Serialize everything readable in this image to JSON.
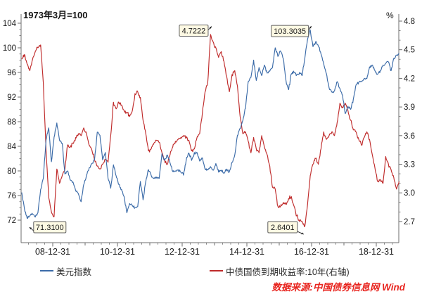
{
  "header": {
    "note": "1973年3月=100",
    "right_axis_unit": "%"
  },
  "source_note": "数据来源:中国债券信息网 Wind",
  "colors": {
    "usd_line": "#3b6ba8",
    "bond_line": "#bf2a2a",
    "axis": "#6e6e6e",
    "tick_text": "#1a1a1a",
    "annotation_bg": "#fdf9e3",
    "annotation_border": "#5f5f5f",
    "source_text": "#e8251f"
  },
  "legend": {
    "items": [
      {
        "label": "美元指数",
        "series": "usd"
      },
      {
        "label": "中债国债到期收益率:10年(右轴)",
        "series": "bond"
      }
    ]
  },
  "chart_data": {
    "type": "line",
    "title": "",
    "x_tick_labels": [
      "08-12-31",
      "10-12-31",
      "12-12-31",
      "14-12-31",
      "16-12-31",
      "18-12-31"
    ],
    "left_axis": {
      "note": "1973年3月=100",
      "ticks": [
        104,
        100,
        96,
        92,
        88,
        84,
        80,
        76,
        72
      ],
      "range": [
        68.3,
        105.5
      ]
    },
    "right_axis": {
      "unit": "%",
      "ticks": [
        4.8,
        4.5,
        4.2,
        3.9,
        3.6,
        3.3,
        3.0,
        2.7
      ],
      "range": [
        2.47,
        4.87
      ]
    },
    "grid": false,
    "legend_position": "bottom",
    "series": [
      {
        "name": "美元指数",
        "axis": "left",
        "start": "2008-01",
        "interval": "monthly",
        "end": "2019-09",
        "min_annotation": "71.3100",
        "max_annotation": "103.3035",
        "values": [
          76.5,
          73.8,
          72.3,
          72.7,
          73.0,
          72.5,
          73.2,
          77.0,
          78.8,
          85.0,
          87.0,
          81.5,
          85.5,
          87.8,
          85.0,
          84.5,
          79.5,
          80.0,
          78.5,
          78.2,
          76.8,
          76.3,
          75.0,
          77.8,
          79.3,
          80.5,
          81.2,
          81.8,
          86.3,
          85.8,
          81.8,
          83.0,
          78.8,
          77.2,
          81.0,
          79.2,
          77.8,
          77.0,
          75.8,
          73.2,
          74.7,
          74.4,
          74.0,
          74.2,
          78.3,
          75.3,
          78.3,
          80.2,
          79.3,
          78.8,
          79.0,
          78.8,
          82.8,
          81.7,
          82.6,
          81.3,
          79.9,
          80.0,
          80.2,
          79.8,
          79.3,
          81.8,
          82.9,
          81.7,
          83.0,
          83.0,
          81.6,
          82.1,
          80.3,
          80.2,
          80.7,
          80.1,
          81.2,
          79.8,
          80.1,
          79.6,
          80.3,
          79.9,
          81.4,
          82.6,
          85.8,
          86.9,
          88.2,
          90.2,
          94.5,
          95.2,
          98.0,
          94.7,
          96.8,
          95.5,
          97.2,
          95.9,
          96.2,
          96.8,
          100.0,
          98.6,
          99.5,
          98.2,
          94.7,
          93.2,
          95.8,
          96.0,
          95.6,
          96.0,
          95.5,
          98.3,
          101.4,
          102.9,
          100.2,
          101.0,
          100.3,
          99.0,
          97.4,
          95.8,
          93.5,
          92.8,
          93.0,
          94.5,
          93.4,
          92.3,
          89.3,
          90.5,
          90.0,
          91.7,
          94.0,
          94.4,
          94.5,
          95.0,
          95.0,
          96.9,
          97.2,
          96.3,
          95.7,
          96.3,
          97.2,
          97.5,
          97.7,
          96.3,
          98.3,
          98.8,
          99.0
        ]
      },
      {
        "name": "中债国债到期收益率:10年(右轴)",
        "axis": "right",
        "start": "2008-01",
        "interval": "monthly",
        "end": "2019-09",
        "min_annotation": "2.6401",
        "max_annotation": "4.7222",
        "values": [
          4.4,
          4.45,
          4.35,
          4.28,
          4.4,
          4.48,
          4.52,
          4.55,
          4.15,
          3.45,
          2.95,
          2.8,
          2.75,
          3.25,
          3.1,
          3.18,
          3.25,
          3.5,
          3.48,
          3.52,
          3.58,
          3.62,
          3.6,
          3.68,
          3.62,
          3.5,
          3.45,
          3.35,
          3.28,
          3.25,
          3.3,
          3.35,
          3.32,
          3.6,
          3.95,
          3.88,
          3.95,
          3.92,
          3.86,
          3.84,
          3.8,
          3.86,
          4.04,
          4.06,
          4.0,
          3.76,
          3.62,
          3.44,
          3.46,
          3.52,
          3.55,
          3.53,
          3.42,
          3.34,
          3.3,
          3.4,
          3.48,
          3.54,
          3.56,
          3.58,
          3.6,
          3.58,
          3.55,
          3.44,
          3.46,
          3.58,
          3.62,
          3.84,
          4.06,
          4.16,
          4.66,
          4.58,
          4.52,
          4.42,
          4.48,
          4.38,
          4.22,
          4.06,
          4.24,
          4.28,
          4.12,
          3.8,
          3.62,
          3.64,
          3.54,
          3.42,
          3.58,
          3.46,
          3.42,
          3.6,
          3.48,
          3.4,
          3.28,
          3.06,
          3.04,
          2.86,
          2.86,
          2.9,
          2.88,
          2.94,
          2.96,
          2.86,
          2.76,
          2.7,
          2.7,
          2.65,
          2.88,
          3.18,
          3.3,
          3.36,
          3.3,
          3.46,
          3.64,
          3.56,
          3.6,
          3.64,
          3.6,
          3.74,
          3.94,
          3.9,
          3.94,
          3.86,
          3.76,
          3.66,
          3.64,
          3.56,
          3.5,
          3.58,
          3.64,
          3.56,
          3.4,
          3.26,
          3.12,
          3.14,
          3.1,
          3.38,
          3.3,
          3.24,
          3.16,
          3.04,
          3.12
        ]
      }
    ],
    "annotations": [
      {
        "text": "4.7222",
        "series": "bond",
        "axis": "right",
        "t": 2013.89,
        "value": 4.7222
      },
      {
        "text": "103.3035",
        "series": "usd",
        "axis": "left",
        "t": 2016.97,
        "value": 103.3035
      },
      {
        "text": "71.3100",
        "series": "usd",
        "axis": "left",
        "t": 2008.3,
        "value": 71.31
      },
      {
        "text": "2.6401",
        "series": "bond",
        "axis": "right",
        "t": 2016.8,
        "value": 2.6401
      }
    ]
  }
}
